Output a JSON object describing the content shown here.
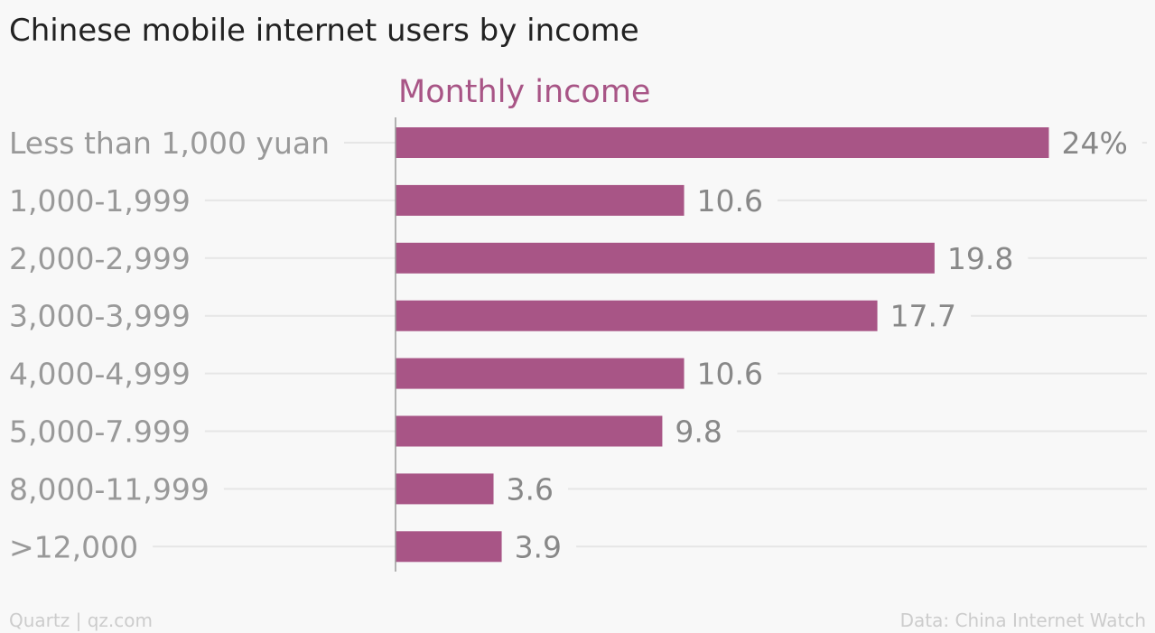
{
  "header": {
    "title": "Chinese mobile internet users by income"
  },
  "footer": {
    "source_left": "Quartz | qz.com",
    "source_right": "Data: China Internet Watch"
  },
  "colors": {
    "bar": "#a85586",
    "series_label": "#a85586",
    "category_text": "#999999",
    "value_text": "#888888",
    "gridline": "#e6e6e6",
    "axis": "#9a9a9a"
  },
  "chart_data": {
    "type": "bar",
    "orientation": "horizontal",
    "title": "Chinese mobile internet users by income",
    "series": [
      {
        "name": "Monthly income",
        "values": [
          24,
          10.6,
          19.8,
          17.7,
          10.6,
          9.8,
          3.6,
          3.9
        ]
      }
    ],
    "categories": [
      "Less than 1,000 yuan",
      "1,000-1,999",
      "2,000-2,999",
      "3,000-3,999",
      "4,000-4,999",
      "5,000-7.999",
      "8,000-11,999",
      ">12,000"
    ],
    "value_labels": [
      "24%",
      "10.6",
      "19.8",
      "17.7",
      "10.6",
      "9.8",
      "3.6",
      "3.9"
    ],
    "xlim": [
      0,
      27.6
    ],
    "grid": true,
    "legend": "none"
  }
}
